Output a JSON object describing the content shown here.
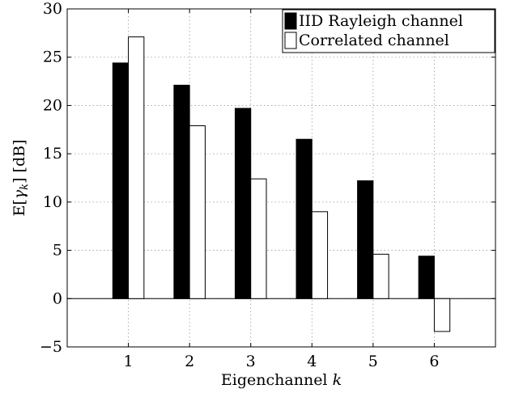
{
  "chart_data": {
    "type": "bar",
    "categories": [
      "1",
      "2",
      "3",
      "4",
      "5",
      "6"
    ],
    "series": [
      {
        "name": "IID Rayleigh channel",
        "values": [
          24.4,
          22.1,
          19.7,
          16.5,
          12.2,
          4.4
        ],
        "color": "#000000"
      },
      {
        "name": "Correlated channel",
        "values": [
          27.1,
          17.9,
          12.4,
          9.0,
          4.6,
          -3.4
        ],
        "color": "#ffffff"
      }
    ],
    "xlabel": "Eigenchannel k",
    "ylabel": "E[γk] [dB]",
    "ylim": [
      -5,
      30
    ],
    "yticks": [
      -5,
      0,
      5,
      10,
      15,
      20,
      25,
      30
    ],
    "xlim": [
      0,
      7
    ],
    "grid": true,
    "legend_position": "top-right"
  }
}
